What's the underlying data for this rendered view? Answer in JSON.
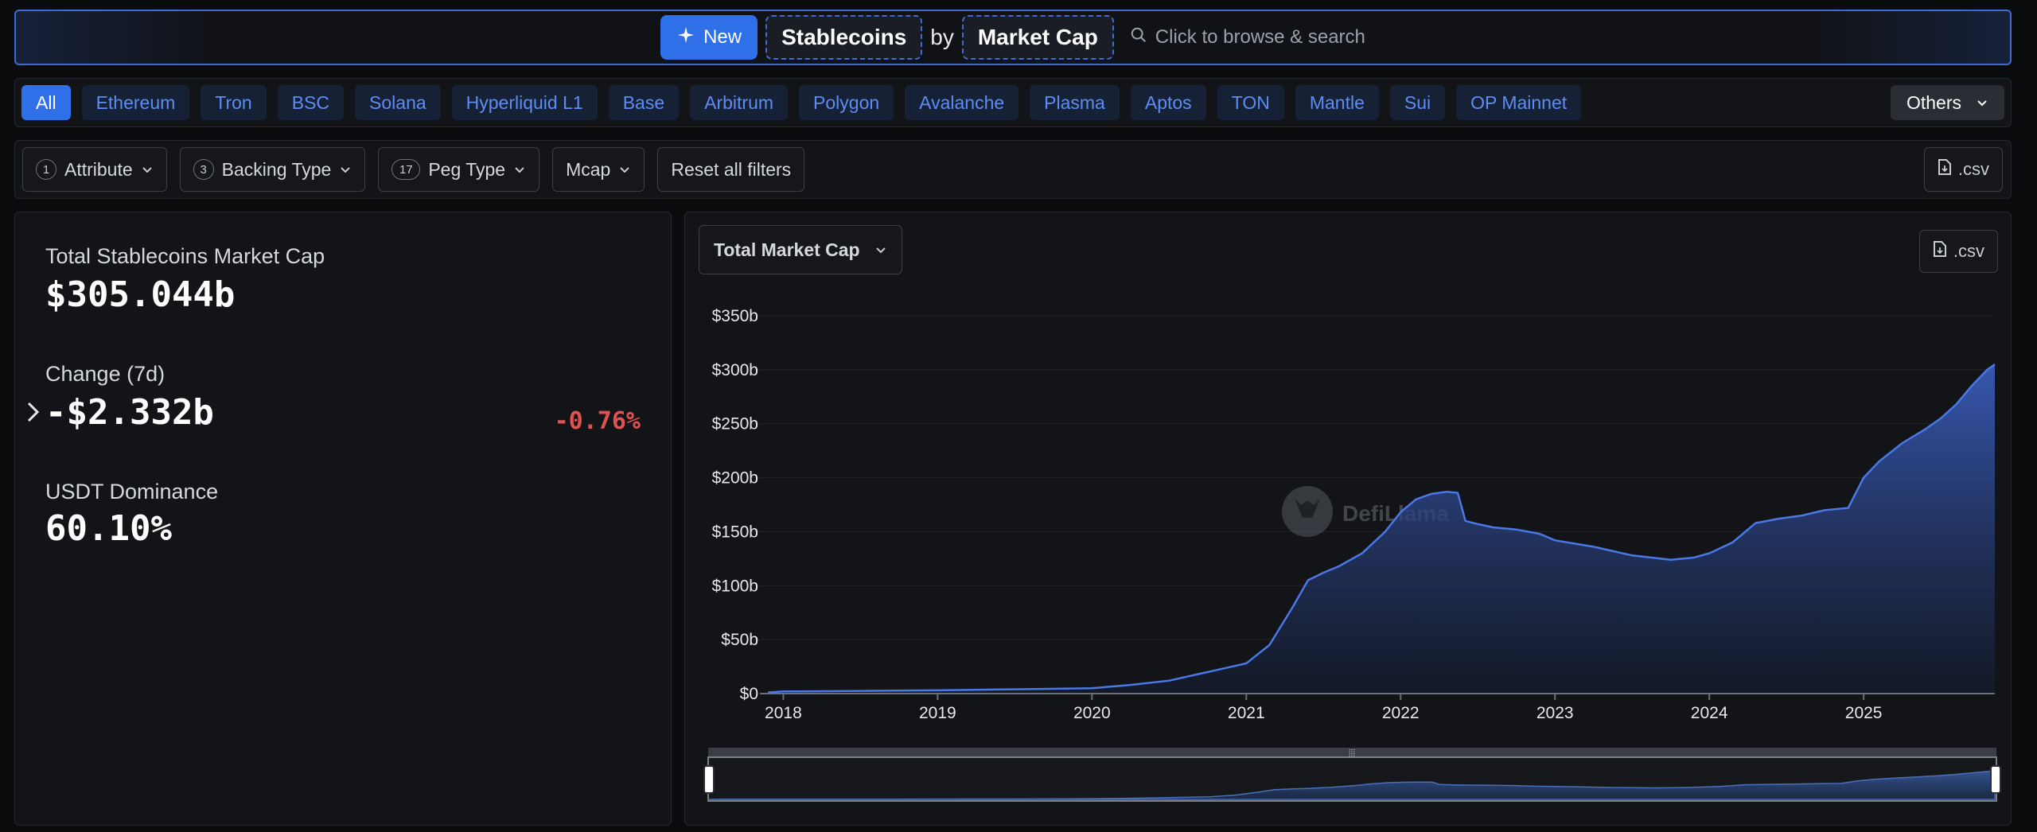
{
  "header": {
    "new_label": "New",
    "metric_group": "Stablecoins",
    "by_label": "by",
    "metric": "Market Cap",
    "search_placeholder": "Click to browse & search"
  },
  "chains": [
    "All",
    "Ethereum",
    "Tron",
    "BSC",
    "Solana",
    "Hyperliquid L1",
    "Base",
    "Arbitrum",
    "Polygon",
    "Avalanche",
    "Plasma",
    "Aptos",
    "TON",
    "Mantle",
    "Sui",
    "OP Mainnet"
  ],
  "chains_others_label": "Others",
  "filters": {
    "attribute": {
      "count": "1",
      "label": "Attribute"
    },
    "backing_type": {
      "count": "3",
      "label": "Backing Type"
    },
    "peg_type": {
      "count": "17",
      "label": "Peg Type"
    },
    "mcap": {
      "label": "Mcap"
    },
    "reset_label": "Reset all filters",
    "csv_label": ".csv"
  },
  "stats": {
    "total_label": "Total Stablecoins Market Cap",
    "total_value": "$305.044b",
    "change_label": "Change (7d)",
    "change_value": "-$2.332b",
    "change_pct": "-0.76%",
    "dominance_label": "USDT Dominance",
    "dominance_value": "60.10%"
  },
  "chart_panel": {
    "metric_select": "Total Market Cap",
    "csv_label": ".csv",
    "watermark": "DefiLlama"
  },
  "colors": {
    "accent": "#2f6fe8",
    "negative": "#e05252",
    "series": "#4a78e6"
  },
  "chart_data": {
    "type": "area",
    "xlabel": "",
    "ylabel": "",
    "x_ticks": [
      "2018",
      "2019",
      "2020",
      "2021",
      "2022",
      "2023",
      "2024",
      "2025"
    ],
    "y_ticks": [
      "$0",
      "$50b",
      "$100b",
      "$150b",
      "$200b",
      "$250b",
      "$300b",
      "$350b"
    ],
    "ylim": [
      0,
      350
    ],
    "xlim": [
      2017.9,
      2025.85
    ],
    "grid": true,
    "series": [
      {
        "x": [
          2017.9,
          2018.0,
          2018.5,
          2019.0,
          2019.5,
          2020.0,
          2020.25,
          2020.5,
          2020.75,
          2021.0,
          2021.15,
          2021.3,
          2021.4,
          2021.5,
          2021.6,
          2021.75,
          2021.9,
          2022.0,
          2022.1,
          2022.2,
          2022.3,
          2022.37,
          2022.42,
          2022.5,
          2022.6,
          2022.75,
          2022.9,
          2023.0,
          2023.25,
          2023.5,
          2023.75,
          2023.9,
          2024.0,
          2024.15,
          2024.3,
          2024.45,
          2024.6,
          2024.75,
          2024.9,
          2025.0,
          2025.1,
          2025.25,
          2025.4,
          2025.5,
          2025.6,
          2025.7,
          2025.8,
          2025.85
        ],
        "y": [
          1,
          2,
          2.5,
          3,
          4,
          5,
          8,
          12,
          20,
          28,
          45,
          80,
          105,
          112,
          118,
          130,
          150,
          168,
          180,
          185,
          187,
          186,
          160,
          157,
          154,
          152,
          148,
          142,
          136,
          128,
          124,
          126,
          130,
          140,
          158,
          162,
          165,
          170,
          172,
          200,
          215,
          232,
          245,
          255,
          268,
          285,
          300,
          305
        ]
      }
    ]
  }
}
